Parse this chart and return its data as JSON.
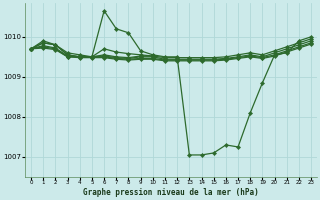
{
  "background_color": "#cceaea",
  "grid_color": "#b0d8d8",
  "line_color": "#2d6a2d",
  "marker_color": "#2d6a2d",
  "title": "Graphe pression niveau de la mer (hPa)",
  "ylim": [
    1006.5,
    1010.85
  ],
  "xlim": [
    -0.5,
    23.5
  ],
  "yticks": [
    1007,
    1008,
    1009,
    1010
  ],
  "xticks": [
    0,
    1,
    2,
    3,
    4,
    5,
    6,
    7,
    8,
    9,
    10,
    11,
    12,
    13,
    14,
    15,
    16,
    17,
    18,
    19,
    20,
    21,
    22,
    23
  ],
  "curves": [
    {
      "x": [
        0,
        1,
        2,
        3,
        4,
        5,
        6,
        7,
        8,
        9,
        10,
        11,
        12,
        13,
        14,
        15,
        16,
        17,
        18,
        19,
        20,
        21,
        22,
        23
      ],
      "y": [
        1009.7,
        1009.9,
        1009.8,
        1009.6,
        1009.55,
        1009.5,
        1010.65,
        1010.2,
        1010.1,
        1009.65,
        1009.55,
        1009.5,
        1009.5,
        1007.05,
        1007.05,
        1007.1,
        1007.3,
        1007.25,
        1008.1,
        1008.85,
        1009.55,
        1009.6,
        1009.9,
        1010.0
      ]
    },
    {
      "x": [
        0,
        1,
        2,
        3,
        4,
        5,
        6,
        7,
        8,
        9,
        10,
        11,
        12,
        13,
        14,
        15,
        16,
        17,
        18,
        19,
        20,
        21,
        22,
        23
      ],
      "y": [
        1009.7,
        1009.85,
        1009.8,
        1009.55,
        1009.5,
        1009.5,
        1009.55,
        1009.5,
        1009.48,
        1009.52,
        1009.52,
        1009.48,
        1009.48,
        1009.48,
        1009.48,
        1009.48,
        1009.5,
        1009.55,
        1009.6,
        1009.55,
        1009.65,
        1009.75,
        1009.85,
        1009.95
      ]
    },
    {
      "x": [
        0,
        1,
        2,
        3,
        4,
        5,
        6,
        7,
        8,
        9,
        10,
        11,
        12,
        13,
        14,
        15,
        16,
        17,
        18,
        19,
        20,
        21,
        22,
        23
      ],
      "y": [
        1009.7,
        1009.78,
        1009.72,
        1009.52,
        1009.5,
        1009.5,
        1009.52,
        1009.48,
        1009.46,
        1009.5,
        1009.5,
        1009.44,
        1009.44,
        1009.44,
        1009.44,
        1009.44,
        1009.46,
        1009.5,
        1009.55,
        1009.5,
        1009.6,
        1009.7,
        1009.8,
        1009.9
      ]
    },
    {
      "x": [
        0,
        1,
        2,
        3,
        4,
        5,
        6,
        7,
        8,
        9,
        10,
        11,
        12,
        13,
        14,
        15,
        16,
        17,
        18,
        19,
        20,
        21,
        22,
        23
      ],
      "y": [
        1009.7,
        1009.75,
        1009.7,
        1009.5,
        1009.5,
        1009.5,
        1009.5,
        1009.46,
        1009.44,
        1009.46,
        1009.46,
        1009.42,
        1009.42,
        1009.42,
        1009.42,
        1009.42,
        1009.44,
        1009.48,
        1009.52,
        1009.48,
        1009.55,
        1009.65,
        1009.75,
        1009.85
      ]
    },
    {
      "x": [
        0,
        1,
        2,
        3,
        4,
        5,
        6,
        7,
        8,
        9,
        10,
        11,
        12,
        13,
        14,
        15,
        16,
        17,
        18,
        19,
        20,
        21,
        22,
        23
      ],
      "y": [
        1009.7,
        1009.72,
        1009.68,
        1009.5,
        1009.48,
        1009.48,
        1009.48,
        1009.44,
        1009.42,
        1009.44,
        1009.44,
        1009.4,
        1009.4,
        1009.4,
        1009.4,
        1009.4,
        1009.42,
        1009.46,
        1009.5,
        1009.46,
        1009.52,
        1009.62,
        1009.72,
        1009.82
      ]
    },
    {
      "x": [
        0,
        1,
        2,
        3,
        4,
        5,
        6,
        7,
        8,
        9,
        10
      ],
      "y": [
        1009.7,
        1009.85,
        1009.8,
        1009.55,
        1009.5,
        1009.5,
        1009.7,
        1009.62,
        1009.58,
        1009.55,
        1009.52
      ]
    }
  ]
}
